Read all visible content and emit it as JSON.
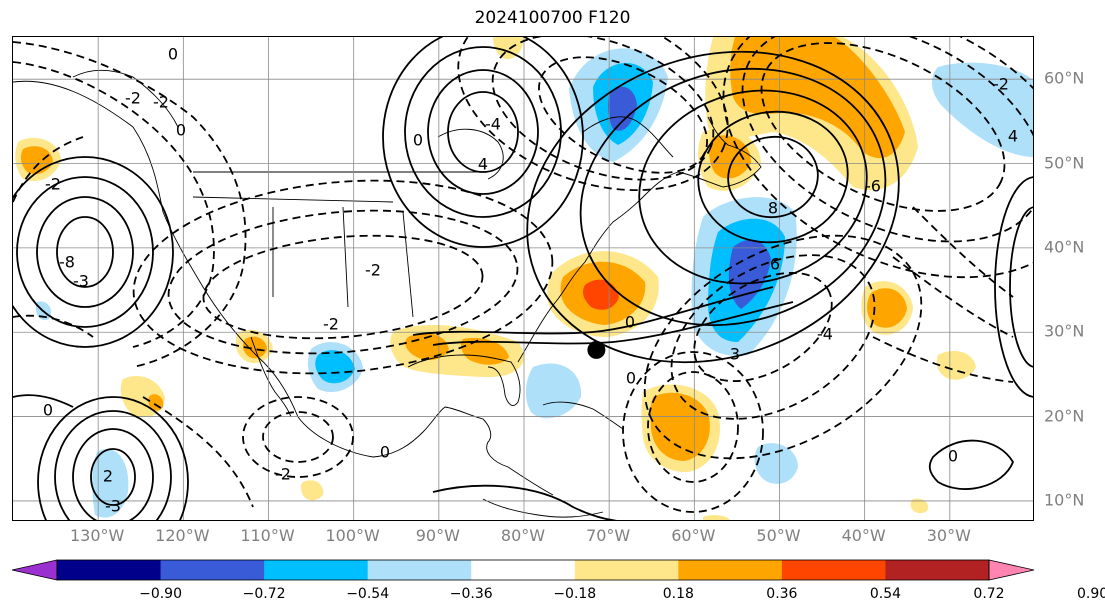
{
  "title": "2024100700 F120",
  "map": {
    "extent": {
      "lon_min": -140,
      "lon_max": -20,
      "lat_min": 7.5,
      "lat_max": 65
    },
    "gridlines": true,
    "longitude_labels": [
      "130°W",
      "120°W",
      "110°W",
      "100°W",
      "90°W",
      "80°W",
      "70°W",
      "60°W",
      "50°W",
      "40°W",
      "30°W"
    ],
    "latitude_labels": [
      "60°N",
      "50°N",
      "40°N",
      "30°N",
      "20°N",
      "10°N"
    ],
    "marker": {
      "name": "storm-center-marker",
      "lon": -71.5,
      "lat": 27.9,
      "color": "#000000"
    },
    "contour_labels": [
      "0",
      "-2",
      "-3",
      "-4",
      "-6",
      "-8",
      "2",
      "3",
      "4",
      "6",
      "8"
    ],
    "contour_line_style": {
      "positive": "solid",
      "negative": "dashed",
      "color": "#000000"
    }
  },
  "colorbar": {
    "ticks": [
      "−0.90",
      "−0.72",
      "−0.54",
      "−0.36",
      "−0.18",
      "0.18",
      "0.36",
      "0.54",
      "0.72",
      "0.90"
    ],
    "colors": [
      "#9b30d0",
      "#00008b",
      "#3a5bd8",
      "#00bfff",
      "#aee0fa",
      "#ffffff",
      "#fde78a",
      "#ffa500",
      "#ff4500",
      "#b22222",
      "#ff85b0"
    ],
    "extend": "both"
  },
  "shading_colors": {
    "neg_light": "#aee0fa",
    "neg_mid": "#00bfff",
    "neg_strong": "#3a5bd8",
    "pos_light": "#fde78a",
    "pos_mid": "#ffa500",
    "pos_strong": "#ff4500"
  }
}
